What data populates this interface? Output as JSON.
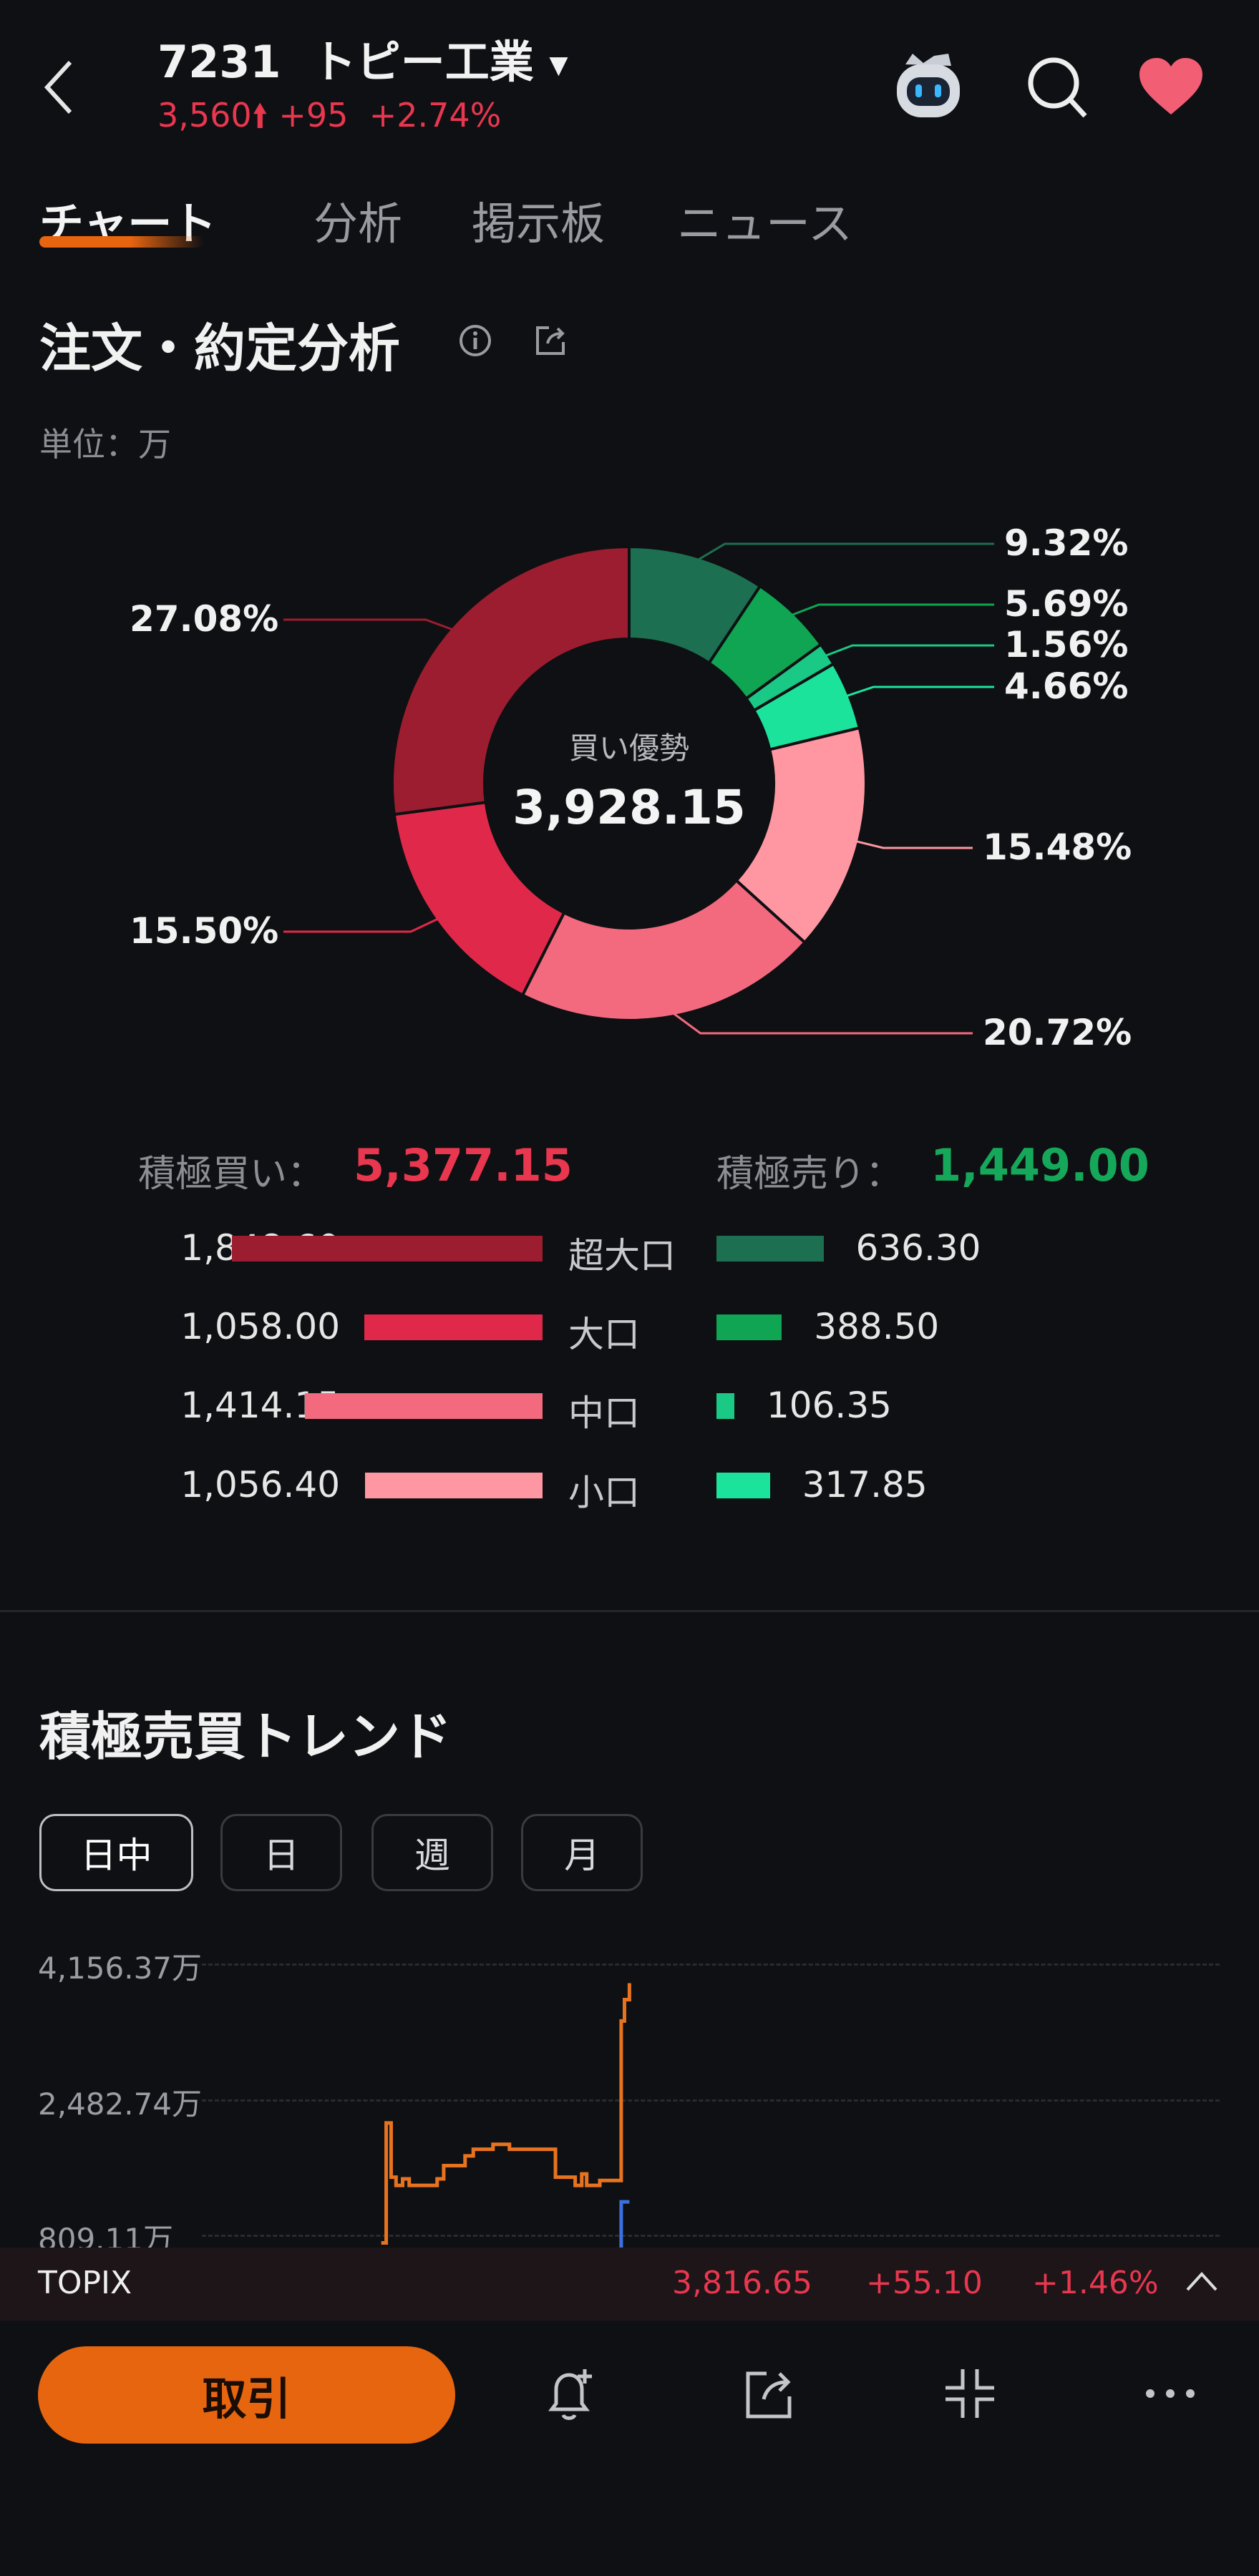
{
  "header": {
    "code": "7231",
    "name": "トピー工業",
    "price": "3,560",
    "change": "+95",
    "change_pct": "+2.74%",
    "icons": [
      "back-chevron-icon",
      "dropdown-caret-icon",
      "up-arrow-icon",
      "robot-assistant-icon",
      "search-icon",
      "heart-icon"
    ]
  },
  "tabs": [
    {
      "label": "チャート",
      "active": true
    },
    {
      "label": "分析",
      "active": false
    },
    {
      "label": "掲示板",
      "active": false
    },
    {
      "label": "ニュース",
      "active": false
    }
  ],
  "order_analysis": {
    "title": "注文・約定分析",
    "unit": "単位：万",
    "center_label": "買い優勢",
    "center_value": "3,928.15",
    "buy_label": "積極買い：",
    "buy_total": "5,377.15",
    "sell_label": "積極売り：",
    "sell_total": "1,449.00",
    "rows": [
      {
        "label": "超大口",
        "buy": 1848.6,
        "buy_text": "1,848.60",
        "sell": 636.3,
        "sell_text": "636.30"
      },
      {
        "label": "大口",
        "buy": 1058.0,
        "buy_text": "1,058.00",
        "sell": 388.5,
        "sell_text": "388.50"
      },
      {
        "label": "中口",
        "buy": 1414.15,
        "buy_text": "1,414.15",
        "sell": 106.35,
        "sell_text": "106.35"
      },
      {
        "label": "小口",
        "buy": 1056.4,
        "buy_text": "1,056.40",
        "sell": 317.85,
        "sell_text": "317.85"
      }
    ],
    "colors": {
      "buy": [
        "#9c1d2f",
        "#e0294a",
        "#f36a7f",
        "#ff97a3"
      ],
      "sell": [
        "#1c6f50",
        "#0fa552",
        "#19c985",
        "#1be39c"
      ]
    }
  },
  "chart_data": [
    {
      "type": "pie",
      "variant": "donut",
      "slices": [
        {
          "label": "9.32%",
          "value": 9.32,
          "color": "#1c6f50"
        },
        {
          "label": "5.69%",
          "value": 5.69,
          "color": "#0fa552"
        },
        {
          "label": "1.56%",
          "value": 1.56,
          "color": "#19c985"
        },
        {
          "label": "4.66%",
          "value": 4.66,
          "color": "#1be39c"
        },
        {
          "label": "15.48%",
          "value": 15.48,
          "color": "#ff97a3"
        },
        {
          "label": "20.72%",
          "value": 20.72,
          "color": "#f36a7f"
        },
        {
          "label": "15.50%",
          "value": 15.5,
          "color": "#e0294a"
        },
        {
          "label": "27.08%",
          "value": 27.08,
          "color": "#9c1d2f"
        }
      ]
    },
    {
      "type": "line",
      "title": "積極売買トレンド",
      "y_ticks": [
        "4,156.37万",
        "2,482.74万",
        "809.11万"
      ],
      "ylim": [
        809.11,
        4156.37
      ],
      "grid": true,
      "series": [
        {
          "color": "#e8731f",
          "values": [
            707,
            2188,
            1519,
            1417,
            1498,
            1417,
            1417,
            1498,
            1661,
            1661,
            1782,
            1863,
            1863,
            1924,
            1863,
            1863,
            1519,
            1417,
            1559,
            1417,
            1478,
            1478,
            3446,
            3710,
            3913
          ]
        },
        {
          "color": "#3c6fe0",
          "values": [
            550,
            1214,
            1214
          ]
        }
      ]
    }
  ],
  "trend": {
    "title": "積極売買トレンド",
    "periods": [
      {
        "label": "日中",
        "active": true
      },
      {
        "label": "日",
        "active": false
      },
      {
        "label": "週",
        "active": false
      },
      {
        "label": "月",
        "active": false
      }
    ]
  },
  "ticker": {
    "name": "TOPIX",
    "value": "3,816.65",
    "change": "+55.10",
    "change_pct": "+1.46%"
  },
  "bottom_bar": {
    "trade_label": "取引",
    "accent": "#e8650f",
    "icons": [
      "alert-bell-add-icon",
      "share-icon",
      "collapse-icon",
      "more-icon"
    ]
  }
}
